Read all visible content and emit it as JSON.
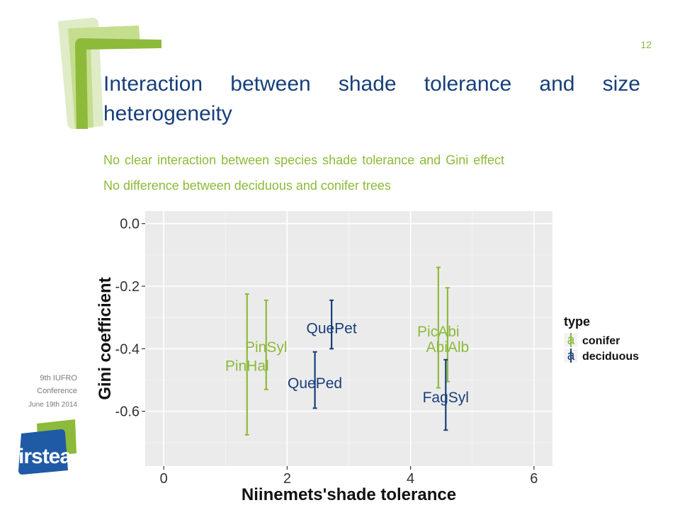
{
  "slide": {
    "number": "12",
    "title": "Interaction between shade tolerance and size heterogeneity",
    "bullets": [
      "No clear interaction between species shade tolerance and Gini effect",
      "No difference between deciduous and conifer trees"
    ],
    "footer": {
      "conference_line1": "9th IUFRO",
      "conference_line2": "Conference",
      "date": "June 19th 2014"
    },
    "logo_text": "irstea"
  },
  "colors": {
    "conifer": "#8dba3a",
    "deciduous": "#173f7a",
    "title": "#173f7a",
    "bullet": "#8dba3a",
    "panel": "#ebebeb"
  },
  "chart_data": {
    "type": "scatter",
    "xlabel": "Niinemets'shade tolerance",
    "ylabel": "Gini coefficient",
    "xlim": [
      -0.3,
      6.3
    ],
    "ylim": [
      -0.775,
      0.04
    ],
    "xticks": [
      0,
      2,
      4,
      6
    ],
    "yticks": [
      0.0,
      -0.2,
      -0.4,
      -0.6
    ],
    "xtick_labels": [
      "0",
      "2",
      "4",
      "6"
    ],
    "ytick_labels": [
      "0.0",
      "-0.2",
      "-0.4",
      "-0.6"
    ],
    "grid": true,
    "legend": {
      "title": "type",
      "position": "right",
      "entries": [
        {
          "name": "conifer",
          "key_glyph": "a"
        },
        {
          "name": "deciduous",
          "key_glyph": "a"
        }
      ]
    },
    "series": [
      {
        "name": "conifer",
        "points": [
          {
            "label": "PinHal",
            "x": 1.35,
            "y": -0.455,
            "lo": -0.675,
            "hi": -0.225
          },
          {
            "label": "PinSyl",
            "x": 1.66,
            "y": -0.395,
            "lo": -0.53,
            "hi": -0.245
          },
          {
            "label": "PicAbi",
            "x": 4.45,
            "y": -0.345,
            "lo": -0.525,
            "hi": -0.14
          },
          {
            "label": "AbiAlb",
            "x": 4.6,
            "y": -0.395,
            "lo": -0.505,
            "hi": -0.205
          }
        ]
      },
      {
        "name": "deciduous",
        "points": [
          {
            "label": "QuePet",
            "x": 2.72,
            "y": -0.335,
            "lo": -0.4,
            "hi": -0.245
          },
          {
            "label": "QuePed",
            "x": 2.45,
            "y": -0.51,
            "lo": -0.59,
            "hi": -0.41
          },
          {
            "label": "FagSyl",
            "x": 4.57,
            "y": -0.555,
            "lo": -0.66,
            "hi": -0.435
          }
        ]
      }
    ]
  }
}
